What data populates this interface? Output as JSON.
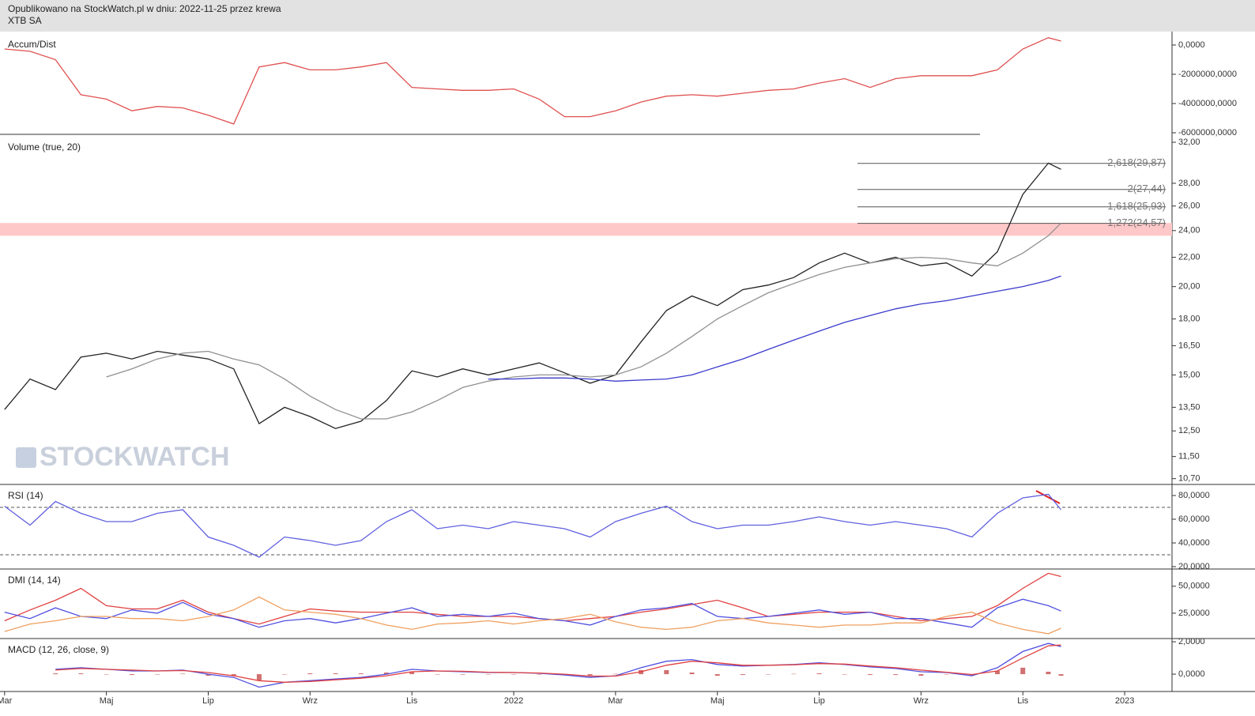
{
  "header": {
    "published": "Opublikowano na StockWatch.pl w dniu: 2022-11-25 przez krewa",
    "instrument": "XTB SA"
  },
  "watermark": "STOCKWATCH",
  "x_axis": {
    "xlim": [
      -0.09,
      22.93
    ],
    "xticks": [
      {
        "value": 0,
        "label": "Mar"
      },
      {
        "value": 2,
        "label": "Maj"
      },
      {
        "value": 4,
        "label": "Lip"
      },
      {
        "value": 6,
        "label": "Wrz"
      },
      {
        "value": 8,
        "label": "Lis"
      },
      {
        "value": 10,
        "label": "2022"
      },
      {
        "value": 12,
        "label": "Mar"
      },
      {
        "value": 14,
        "label": "Maj"
      },
      {
        "value": 16,
        "label": "Lip"
      },
      {
        "value": 18,
        "label": "Wrz"
      },
      {
        "value": 20,
        "label": "Lis"
      },
      {
        "value": 22,
        "label": "2023"
      }
    ],
    "x": [
      0,
      0.5,
      1,
      1.5,
      2,
      2.5,
      3,
      3.5,
      4,
      4.5,
      5,
      5.5,
      6,
      6.5,
      7,
      7.5,
      8,
      8.5,
      9,
      9.5,
      10,
      10.5,
      11,
      11.5,
      12,
      12.5,
      13,
      13.5,
      14,
      14.5,
      15,
      15.5,
      16,
      16.5,
      17,
      17.5,
      18,
      18.5,
      19,
      19.5,
      20,
      20.5,
      20.75
    ]
  },
  "chart_data": [
    {
      "type": "line",
      "title": "Accum/Dist",
      "ylim": [
        -6000000,
        700000
      ],
      "yticks": [
        {
          "value": 0,
          "label": "0,0000"
        },
        {
          "value": -2000000,
          "label": "-2000000,0000"
        },
        {
          "value": -4000000,
          "label": "-4000000,0000"
        },
        {
          "value": -6000000,
          "label": "-6000000,0000"
        }
      ],
      "series": [
        {
          "color": "#e05050",
          "values": [
            -270000,
            -430000,
            -1000000,
            -3400000,
            -3700000,
            -4500000,
            -4200000,
            -4300000,
            -4800000,
            -5400000,
            -1500000,
            -1200000,
            -1700000,
            -1700000,
            -1500000,
            -1200000,
            -2900000,
            -3000000,
            -3100000,
            -3100000,
            -3000000,
            -3700000,
            -4900000,
            -4900000,
            -4500000,
            -3900000,
            -3500000,
            -3400000,
            -3500000,
            -3300000,
            -3100000,
            -3000000,
            -2600000,
            -2300000,
            -2900000,
            -2300000,
            -2100000,
            -2100000,
            -2100000,
            -1700000,
            -270000,
            500000,
            270000
          ]
        }
      ]
    },
    {
      "type": "line",
      "title": "Volume (true, 20)",
      "log_scale": true,
      "ylim": [
        10.5,
        32.5
      ],
      "yticks": [
        {
          "value": 32,
          "label": "32,00"
        },
        {
          "value": 28,
          "label": "28,00"
        },
        {
          "value": 26,
          "label": "26,00"
        },
        {
          "value": 24,
          "label": "24,00"
        },
        {
          "value": 22,
          "label": "22,00"
        },
        {
          "value": 20,
          "label": "20,00"
        },
        {
          "value": 18,
          "label": "18,00"
        },
        {
          "value": 16.5,
          "label": "16,50"
        },
        {
          "value": 15,
          "label": "15,00"
        },
        {
          "value": 13.5,
          "label": "13,50"
        },
        {
          "value": 12.5,
          "label": "12,50"
        },
        {
          "value": 11.5,
          "label": "11,50"
        },
        {
          "value": 10.7,
          "label": "10,70"
        }
      ],
      "zone": [
        23.6,
        24.6
      ],
      "zone_color": "#ffc8c8",
      "levels": [
        {
          "value": 29.87,
          "label": "2,618(29,87)"
        },
        {
          "value": 27.44,
          "label": "2(27,44)"
        },
        {
          "value": 25.93,
          "label": "1,618(25,93)"
        },
        {
          "value": 24.57,
          "label": "1,272(24,57)"
        }
      ],
      "series": [
        {
          "color": "#222222",
          "values": [
            13.4,
            14.8,
            14.3,
            15.9,
            16.1,
            15.8,
            16.2,
            16.0,
            15.8,
            15.3,
            12.8,
            13.5,
            13.1,
            12.6,
            12.9,
            13.8,
            15.2,
            14.9,
            15.3,
            15.0,
            15.3,
            15.6,
            15.1,
            14.6,
            15.0,
            16.7,
            18.5,
            19.4,
            18.8,
            19.8,
            20.1,
            20.6,
            21.6,
            22.3,
            21.6,
            22.0,
            21.4,
            21.6,
            20.7,
            22.4,
            27.0,
            29.9,
            29.3
          ]
        },
        {
          "color": "#909090",
          "values": [
            null,
            null,
            null,
            null,
            14.9,
            15.3,
            15.8,
            16.1,
            16.2,
            15.8,
            15.5,
            14.8,
            14.0,
            13.4,
            13.0,
            13.0,
            13.3,
            13.8,
            14.4,
            14.7,
            14.9,
            15.0,
            15.0,
            14.9,
            15.0,
            15.4,
            16.1,
            17.0,
            18.0,
            18.8,
            19.6,
            20.2,
            20.8,
            21.3,
            21.6,
            21.9,
            22.0,
            21.9,
            21.6,
            21.4,
            22.3,
            23.6,
            24.6
          ]
        },
        {
          "color": "#3a3acc",
          "values": [
            null,
            null,
            null,
            null,
            null,
            null,
            null,
            null,
            null,
            null,
            null,
            null,
            null,
            null,
            null,
            null,
            null,
            null,
            null,
            14.8,
            14.8,
            14.85,
            14.85,
            14.8,
            14.7,
            14.75,
            14.8,
            15.0,
            15.4,
            15.8,
            16.3,
            16.8,
            17.3,
            17.8,
            18.2,
            18.6,
            18.9,
            19.1,
            19.4,
            19.7,
            20.0,
            20.4,
            20.7
          ]
        }
      ]
    },
    {
      "type": "line",
      "title": "RSI (14)",
      "ylim": [
        18,
        88
      ],
      "yticks": [
        {
          "value": 80,
          "label": "80,0000"
        },
        {
          "value": 60,
          "label": "60,0000"
        },
        {
          "value": 40,
          "label": "40,0000"
        },
        {
          "value": 20,
          "label": "20,0000"
        }
      ],
      "reference_lines": [
        70,
        30
      ],
      "series": [
        {
          "color": "#6060e0",
          "values": [
            71,
            55,
            75,
            65,
            58,
            58,
            65,
            68,
            45,
            38,
            28,
            45,
            42,
            38,
            42,
            58,
            68,
            52,
            55,
            52,
            58,
            55,
            52,
            45,
            58,
            65,
            71,
            58,
            52,
            55,
            55,
            58,
            62,
            58,
            55,
            58,
            55,
            52,
            45,
            65,
            78,
            81,
            68
          ]
        }
      ]
    },
    {
      "type": "line",
      "title": "DMI (14, 14)",
      "ylim": [
        1.5,
        64.5
      ],
      "yticks": [
        {
          "value": 50,
          "label": "50,0000"
        },
        {
          "value": 25,
          "label": "25,0000"
        }
      ],
      "series": [
        {
          "color": "#e04040",
          "values": [
            18,
            28,
            37,
            48,
            32,
            29,
            29,
            37,
            26,
            20,
            15,
            22,
            29,
            27,
            26,
            26,
            26,
            24,
            22,
            22,
            22,
            20,
            18,
            20,
            22,
            26,
            29,
            33,
            37,
            30,
            22,
            24,
            26,
            26,
            26,
            22,
            18,
            20,
            22,
            32,
            48,
            62,
            59
          ]
        },
        {
          "color": "#5050e0",
          "values": [
            26,
            20,
            30,
            22,
            20,
            28,
            25,
            35,
            24,
            20,
            12,
            18,
            20,
            16,
            20,
            25,
            30,
            22,
            24,
            22,
            25,
            20,
            18,
            14,
            22,
            28,
            30,
            34,
            22,
            20,
            22,
            25,
            28,
            24,
            26,
            20,
            20,
            16,
            12,
            30,
            38,
            32,
            27
          ]
        },
        {
          "color": "#f0a060",
          "values": [
            8,
            15,
            18,
            22,
            22,
            20,
            20,
            18,
            22,
            28,
            40,
            28,
            26,
            24,
            20,
            14,
            10,
            15,
            16,
            18,
            15,
            18,
            20,
            24,
            17,
            12,
            10,
            12,
            18,
            20,
            16,
            14,
            12,
            14,
            14,
            16,
            16,
            22,
            26,
            16,
            10,
            6,
            11
          ]
        }
      ]
    },
    {
      "type": "line",
      "title": "MACD (12, 26, close, 9)",
      "ylim": [
        -1.07,
        2.1
      ],
      "yticks": [
        {
          "value": 2,
          "label": "2,0000"
        },
        {
          "value": 0,
          "label": "0,0000"
        }
      ],
      "series": [
        {
          "type": "bar",
          "color": "#d07070",
          "values": [
            null,
            null,
            0.05,
            0.05,
            0,
            -0.05,
            0,
            0.03,
            -0.1,
            -0.1,
            -0.4,
            0,
            0.05,
            0.05,
            0.05,
            0.1,
            0.15,
            0,
            -0.03,
            -0.02,
            0,
            -0.02,
            -0.05,
            -0.08,
            0.02,
            0.25,
            0.25,
            0.1,
            -0.1,
            -0.05,
            0,
            0.02,
            0.05,
            -0.02,
            -0.05,
            -0.05,
            -0.1,
            -0.02,
            -0.08,
            0.2,
            0.4,
            0.15,
            -0.1
          ]
        },
        {
          "color": "#5050e0",
          "values": [
            null,
            null,
            0.3,
            0.4,
            0.3,
            0.2,
            0.2,
            0.25,
            0.0,
            -0.2,
            -0.8,
            -0.5,
            -0.4,
            -0.3,
            -0.2,
            0.0,
            0.3,
            0.2,
            0.15,
            0.1,
            0.1,
            0.05,
            -0.05,
            -0.2,
            -0.1,
            0.4,
            0.8,
            0.9,
            0.6,
            0.5,
            0.55,
            0.6,
            0.7,
            0.6,
            0.45,
            0.35,
            0.15,
            0.1,
            -0.1,
            0.4,
            1.4,
            1.9,
            1.7
          ]
        },
        {
          "color": "#e04040",
          "values": [
            null,
            null,
            0.25,
            0.35,
            0.3,
            0.25,
            0.2,
            0.22,
            0.1,
            -0.1,
            -0.4,
            -0.5,
            -0.45,
            -0.35,
            -0.25,
            -0.1,
            0.15,
            0.2,
            0.18,
            0.12,
            0.1,
            0.07,
            0.0,
            -0.12,
            -0.12,
            0.15,
            0.55,
            0.8,
            0.7,
            0.55,
            0.55,
            0.58,
            0.65,
            0.62,
            0.5,
            0.4,
            0.25,
            0.12,
            -0.02,
            0.2,
            1.0,
            1.75,
            1.8
          ]
        }
      ]
    }
  ]
}
